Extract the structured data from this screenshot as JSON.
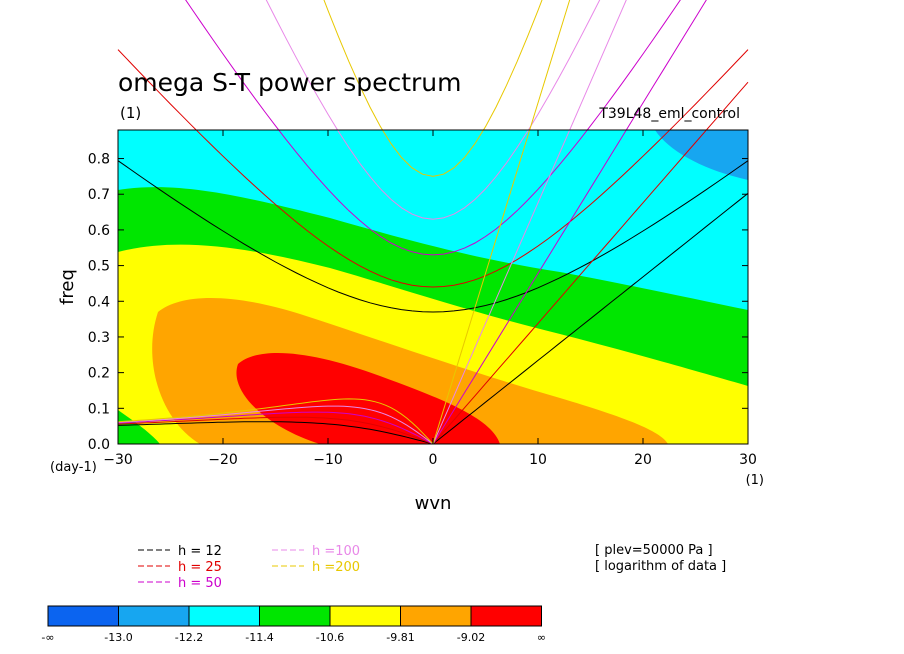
{
  "header": {
    "title": "omega S-T power spectrum",
    "subtitle": "(1)",
    "run": "T39L48_eml_control"
  },
  "axes": {
    "xlabel": "wvn",
    "ylabel": "freq",
    "x_unit": "(1)",
    "y_unit": "(day-1)"
  },
  "info": {
    "level": "[ plev=50000 Pa ]",
    "transform": "[ logarithm of data ]"
  },
  "legend": [
    {
      "label": "h = 12",
      "color": "#000000"
    },
    {
      "label": "h = 25",
      "color": "#e00000"
    },
    {
      "label": "h = 50",
      "color": "#cc00cc"
    },
    {
      "label": "h =100",
      "color": "#e888e8"
    },
    {
      "label": "h =200",
      "color": "#e8c800"
    }
  ],
  "colorbar": {
    "colors": [
      "#0b64f0",
      "#17a6f0",
      "#00ffff",
      "#00e600",
      "#ffff00",
      "#ffa500",
      "#ff0000"
    ],
    "labels": [
      "-∞",
      "-13.0",
      "-12.2",
      "-11.4",
      "-10.6",
      "-9.81",
      "-9.02",
      "∞"
    ]
  },
  "chart_data": {
    "type": "heatmap",
    "title": "omega S-T power spectrum",
    "xlabel": "wvn",
    "ylabel": "freq",
    "xlim": [
      -30,
      30
    ],
    "ylim": [
      0,
      0.88
    ],
    "x_ticks": [
      -30,
      -20,
      -10,
      0,
      10,
      20,
      30
    ],
    "y_ticks": [
      0.0,
      0.1,
      0.2,
      0.3,
      0.4,
      0.5,
      0.6,
      0.7,
      0.8
    ],
    "contour_levels": [
      -13.0,
      -12.2,
      -11.4,
      -10.6,
      -9.81,
      -9.02
    ],
    "field_description": "log power maximum (> -9.02) near wvn -10 to 5, freq 0.05-0.25; decreasing toward high frequency and positive wavenumber",
    "dispersion_curves": {
      "equivalent_depths_m": [
        12,
        25,
        50,
        100,
        200
      ],
      "colors": [
        "#000000",
        "#e00000",
        "#cc00cc",
        "#e888e8",
        "#e8c800"
      ],
      "min_frequency_at_wvn0": [
        0.37,
        0.44,
        0.53,
        0.63,
        0.75
      ]
    }
  }
}
